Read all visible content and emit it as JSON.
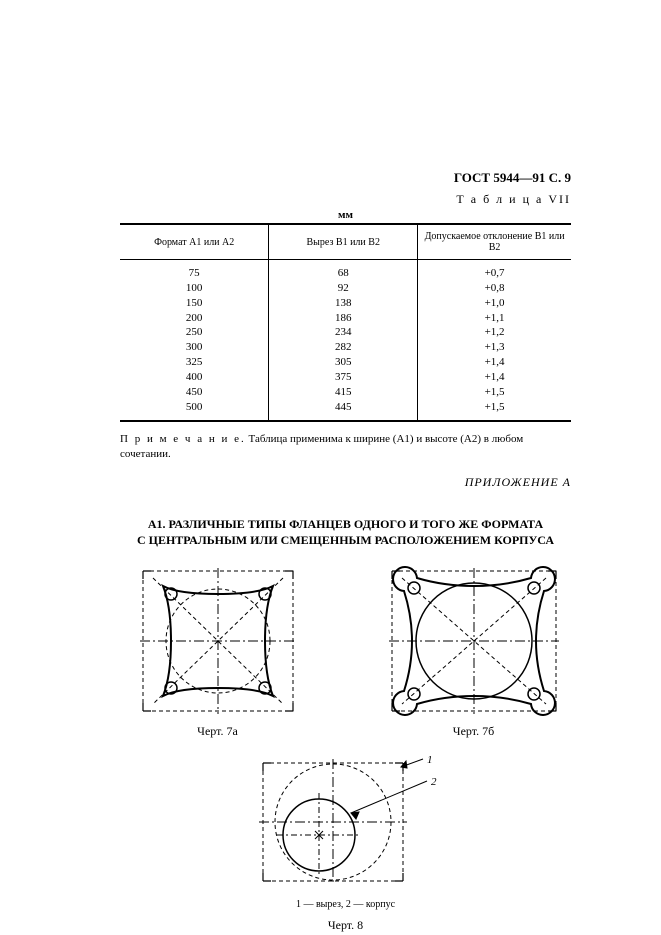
{
  "header": "ГОСТ 5944—91 С. 9",
  "table_label": "Т а б л и ц а  VII",
  "unit": "мм",
  "table": {
    "columns": [
      "Формат A1 или A2",
      "Вырез B1 или B2",
      "Допускаемое отклонение B1 или B2"
    ],
    "rows": [
      [
        "75",
        "68",
        "+0,7"
      ],
      [
        "100",
        "92",
        "+0,8"
      ],
      [
        "150",
        "138",
        "+1,0"
      ],
      [
        "200",
        "186",
        "+1,1"
      ],
      [
        "250",
        "234",
        "+1,2"
      ],
      [
        "300",
        "282",
        "+1,3"
      ],
      [
        "325",
        "305",
        "+1,4"
      ],
      [
        "400",
        "375",
        "+1,4"
      ],
      [
        "450",
        "415",
        "+1,5"
      ],
      [
        "500",
        "445",
        "+1,5"
      ]
    ]
  },
  "note_label": "П р и м е ч а н и е.",
  "note_text": " Таблица применима к ширине (A1) и высоте (A2) в любом сочетании.",
  "appendix": "ПРИЛОЖЕНИЕ А",
  "section_title_l1": "А1. РАЗЛИЧНЫЕ ТИПЫ ФЛАНЦЕВ ОДНОГО И ТОГО ЖЕ ФОРМАТА",
  "section_title_l2": "С ЦЕНТРАЛЬНЫМ ИЛИ СМЕЩЕННЫМ РАСПОЛОЖЕНИЕМ КОРПУСА",
  "fig7a": "Черт. 7а",
  "fig7b": "Черт. 7б",
  "fig8_legend": "1 — вырез, 2 — корпус",
  "fig8": "Черт. 8",
  "leader1": "1",
  "leader2": "2",
  "diagram": {
    "stroke": "#000000",
    "dash": "4,3",
    "centerdash": "10,3,2,3",
    "holeR": 6,
    "plateR": 18
  }
}
